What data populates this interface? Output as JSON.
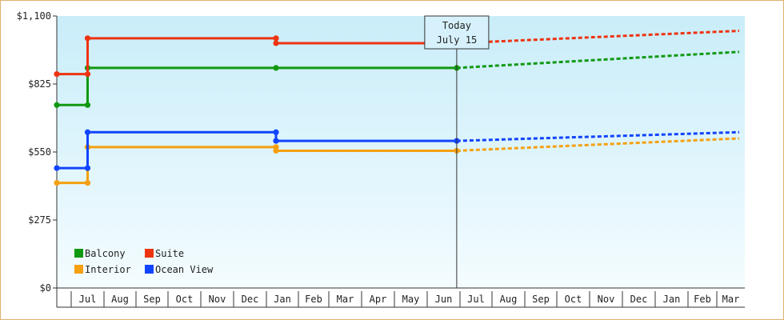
{
  "chart_data": {
    "type": "line",
    "y_ticks": [
      "$0",
      "$275",
      "$550",
      "$825",
      "$1,100"
    ],
    "ylim": [
      0,
      1100
    ],
    "x_months": [
      "Jul",
      "Aug",
      "Sep",
      "Oct",
      "Nov",
      "Dec",
      "Jan",
      "Feb",
      "Mar",
      "Apr",
      "May",
      "Jun",
      "Jul",
      "Aug",
      "Sep",
      "Oct",
      "Nov",
      "Dec",
      "Jan",
      "Feb",
      "Mar"
    ],
    "today_marker": {
      "line1": "Today",
      "line2": "July 15"
    },
    "grid": false,
    "legend_position": "bottom-left",
    "series": [
      {
        "name": "Balcony",
        "color": "#119911",
        "historical": [
          [
            0,
            740
          ],
          [
            1.5,
            740
          ],
          [
            1.5,
            890
          ],
          [
            7.3,
            890
          ],
          [
            12.9,
            890
          ]
        ],
        "forecast": [
          [
            12.9,
            890
          ],
          [
            21.8,
            955
          ]
        ]
      },
      {
        "name": "Suite",
        "color": "#ee3311",
        "historical": [
          [
            0,
            865
          ],
          [
            1.5,
            865
          ],
          [
            1.5,
            1010
          ],
          [
            7.3,
            1010
          ],
          [
            7.3,
            990
          ],
          [
            12.9,
            990
          ]
        ],
        "forecast": [
          [
            12.9,
            990
          ],
          [
            21.8,
            1040
          ]
        ]
      },
      {
        "name": "Interior",
        "color": "#f5a010",
        "historical": [
          [
            0,
            425
          ],
          [
            1.5,
            425
          ],
          [
            1.5,
            570
          ],
          [
            7.3,
            570
          ],
          [
            7.3,
            555
          ],
          [
            12.9,
            555
          ]
        ],
        "forecast": [
          [
            12.9,
            555
          ],
          [
            21.8,
            605
          ]
        ]
      },
      {
        "name": "Ocean View",
        "color": "#1144ff",
        "historical": [
          [
            0,
            485
          ],
          [
            1.5,
            485
          ],
          [
            1.5,
            630
          ],
          [
            7.3,
            630
          ],
          [
            7.3,
            595
          ],
          [
            12.9,
            595
          ]
        ],
        "forecast": [
          [
            12.9,
            595
          ],
          [
            21.8,
            630
          ]
        ]
      }
    ]
  }
}
